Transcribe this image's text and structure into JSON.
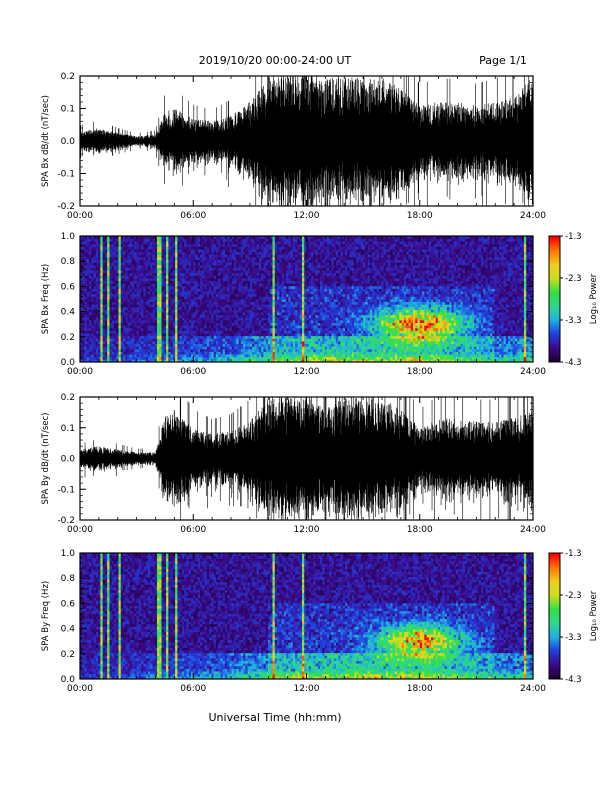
{
  "header": {
    "date_range": "2019/10/20  00:00-24:00 UT",
    "page": "Page 1/1"
  },
  "footer": {
    "xlabel": "Universal Time (hh:mm)"
  },
  "colors": {
    "waveform": "#000000",
    "colormap": [
      "#1a0033",
      "#3d0a8a",
      "#2040e0",
      "#20b0e0",
      "#30d890",
      "#30e040",
      "#c8e020",
      "#f0d020",
      "#ff7a00",
      "#ff0000"
    ]
  },
  "chart_data": [
    {
      "type": "line",
      "id": "bx-waveform",
      "ylabel": "SPA Bx dB/dt (nT/sec)",
      "xlim": [
        0,
        24
      ],
      "ylim": [
        -0.2,
        0.2
      ],
      "x_ticks": [
        "00:00",
        "06:00",
        "12:00",
        "18:00",
        "24:00"
      ],
      "y_ticks": [
        "-0.2",
        "-0.1",
        "0.0",
        "0.1",
        "0.2"
      ],
      "y_tick_values": [
        -0.2,
        -0.1,
        0.0,
        0.1,
        0.2
      ],
      "envelope_hours": [
        0,
        1,
        2,
        3,
        4,
        4.5,
        5,
        6,
        7,
        8,
        9,
        10,
        11,
        12,
        13,
        14,
        15,
        16,
        17,
        18,
        19,
        20,
        21,
        22,
        23,
        24
      ],
      "envelope_amplitude": [
        0.03,
        0.04,
        0.025,
        0.015,
        0.02,
        0.09,
        0.1,
        0.07,
        0.06,
        0.08,
        0.12,
        0.2,
        0.2,
        0.2,
        0.2,
        0.2,
        0.2,
        0.2,
        0.16,
        0.11,
        0.12,
        0.12,
        0.11,
        0.12,
        0.14,
        0.2
      ]
    },
    {
      "type": "heatmap",
      "id": "bx-spectrogram",
      "ylabel": "SPA Bx Freq (Hz)",
      "xlim": [
        0,
        24
      ],
      "ylim": [
        0,
        1
      ],
      "x_ticks": [
        "00:00",
        "06:00",
        "12:00",
        "18:00",
        "24:00"
      ],
      "y_ticks": [
        "0.0",
        "0.2",
        "0.4",
        "0.6",
        "0.8",
        "1.0"
      ],
      "y_tick_values": [
        0,
        0.2,
        0.4,
        0.6,
        0.8,
        1.0
      ],
      "colorbar": {
        "label": "Log₁₀ Power",
        "ticks": [
          "-1.3",
          "-2.3",
          "-3.3",
          "-4.3"
        ],
        "tick_values": [
          -1.3,
          -2.3,
          -3.3,
          -4.3
        ],
        "range": [
          -4.3,
          -1.3
        ]
      }
    },
    {
      "type": "line",
      "id": "by-waveform",
      "ylabel": "SPA By dB/dt (nT/sec)",
      "xlim": [
        0,
        24
      ],
      "ylim": [
        -0.2,
        0.2
      ],
      "x_ticks": [
        "00:00",
        "06:00",
        "12:00",
        "18:00",
        "24:00"
      ],
      "y_ticks": [
        "-0.2",
        "-0.1",
        "0.0",
        "0.1",
        "0.2"
      ],
      "y_tick_values": [
        -0.2,
        -0.1,
        0.0,
        0.1,
        0.2
      ],
      "envelope_hours": [
        0,
        1,
        2,
        3,
        4,
        4.5,
        5,
        6,
        7,
        8,
        9,
        10,
        11,
        12,
        13,
        14,
        15,
        16,
        17,
        18,
        19,
        20,
        21,
        22,
        23,
        24
      ],
      "envelope_amplitude": [
        0.03,
        0.04,
        0.03,
        0.02,
        0.02,
        0.14,
        0.16,
        0.1,
        0.08,
        0.09,
        0.12,
        0.2,
        0.2,
        0.2,
        0.16,
        0.2,
        0.2,
        0.2,
        0.16,
        0.1,
        0.13,
        0.13,
        0.12,
        0.12,
        0.14,
        0.16
      ]
    },
    {
      "type": "heatmap",
      "id": "by-spectrogram",
      "ylabel": "SPA By Freq (Hz)",
      "xlim": [
        0,
        24
      ],
      "ylim": [
        0,
        1
      ],
      "x_ticks": [
        "00:00",
        "06:00",
        "12:00",
        "18:00",
        "24:00"
      ],
      "y_ticks": [
        "0.0",
        "0.2",
        "0.4",
        "0.6",
        "0.8",
        "1.0"
      ],
      "y_tick_values": [
        0,
        0.2,
        0.4,
        0.6,
        0.8,
        1.0
      ],
      "colorbar": {
        "label": "Log₁₀ Power",
        "ticks": [
          "-1.3",
          "-2.3",
          "-3.3",
          "-4.3"
        ],
        "tick_values": [
          -1.3,
          -2.3,
          -3.3,
          -4.3
        ],
        "range": [
          -4.3,
          -1.3
        ]
      }
    }
  ]
}
